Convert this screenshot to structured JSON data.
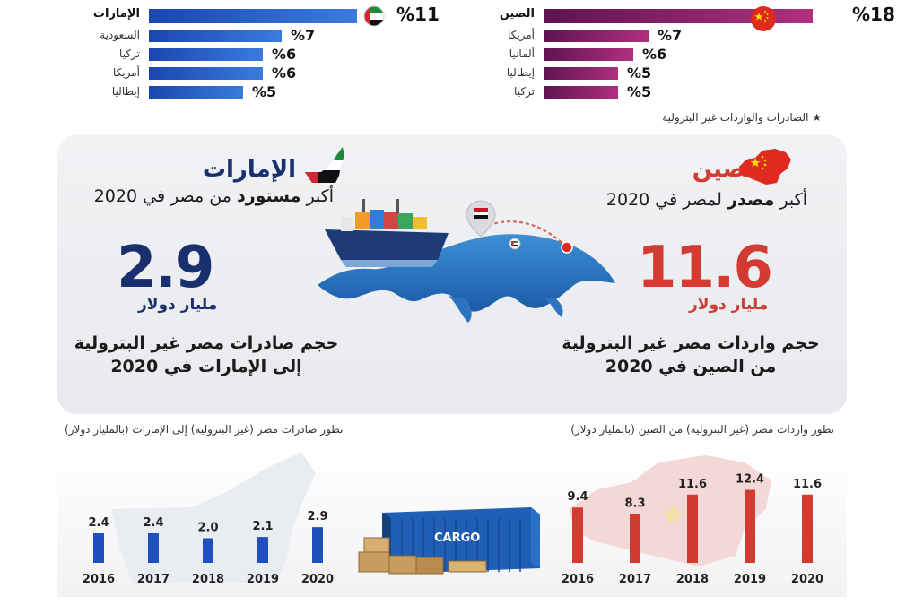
{
  "top_left_ranking": {
    "items": [
      {
        "label": "الإمارات",
        "pct": "%11",
        "value": 11
      },
      {
        "label": "السعودية",
        "pct": "%7",
        "value": 7
      },
      {
        "label": "تركيا",
        "pct": "%6",
        "value": 6
      },
      {
        "label": "أمريكا",
        "pct": "%6",
        "value": 6
      },
      {
        "label": "إيطاليا",
        "pct": "%5",
        "value": 5
      }
    ]
  },
  "top_right_ranking": {
    "items": [
      {
        "label": "الصين",
        "pct": "%18",
        "value": 18
      },
      {
        "label": "أمريكا",
        "pct": "%7",
        "value": 7
      },
      {
        "label": "ألمانيا",
        "pct": "%6",
        "value": 6
      },
      {
        "label": "إيطاليا",
        "pct": "%5",
        "value": 5
      },
      {
        "label": "تركيا",
        "pct": "%5",
        "value": 5
      }
    ]
  },
  "footnote": "الصادرات والواردات غير البترولية",
  "uae_panel": {
    "country": "الإمارات",
    "subtitle_prefix": "أكبر",
    "subtitle_bold": "مستورد",
    "subtitle_suffix": "من مصر في 2020",
    "big_value": "2.9",
    "unit": "مليار دولار",
    "desc_line1": "حجم صادرات مصر غير البترولية",
    "desc_line2": "إلى الإمارات في 2020"
  },
  "china_panel": {
    "country": "الصين",
    "subtitle_prefix": "أكبر",
    "subtitle_bold": "مصدر",
    "subtitle_suffix": "لمصر في 2020",
    "big_value": "11.6",
    "unit": "مليار دولار",
    "desc_line1": "حجم واردات مصر غير البترولية",
    "desc_line2": "من الصين في 2020"
  },
  "cargo_label": "CARGO",
  "colors": {
    "blue": "#1f4fbf",
    "navy": "#1a2f6e",
    "red": "#d23a32",
    "pink": "#8e2470",
    "card_bg": "#eceef1"
  },
  "chart_data": [
    {
      "type": "bar",
      "title": "تطور صادرات مصر (غير البترولية) إلى الإمارات (بالمليار دولار)",
      "categories": [
        "2016",
        "2017",
        "2018",
        "2019",
        "2020"
      ],
      "values": [
        2.4,
        2.4,
        2.0,
        2.1,
        2.9
      ],
      "value_labels": [
        "2.4",
        "2.4",
        "2.0",
        "2.1",
        "2.9"
      ],
      "ylim": [
        0,
        3.2
      ],
      "color": "#1f4fbf"
    },
    {
      "type": "bar",
      "title": "تطور واردات مصر (غير البترولية) من الصين (بالمليار دولار)",
      "categories": [
        "2016",
        "2017",
        "2018",
        "2019",
        "2020"
      ],
      "values": [
        9.4,
        8.3,
        11.6,
        12.4,
        11.6
      ],
      "value_labels": [
        "9.4",
        "8.3",
        "11.6",
        "12.4",
        "11.6"
      ],
      "ylim": [
        0,
        14
      ],
      "color": "#d23a32"
    }
  ]
}
